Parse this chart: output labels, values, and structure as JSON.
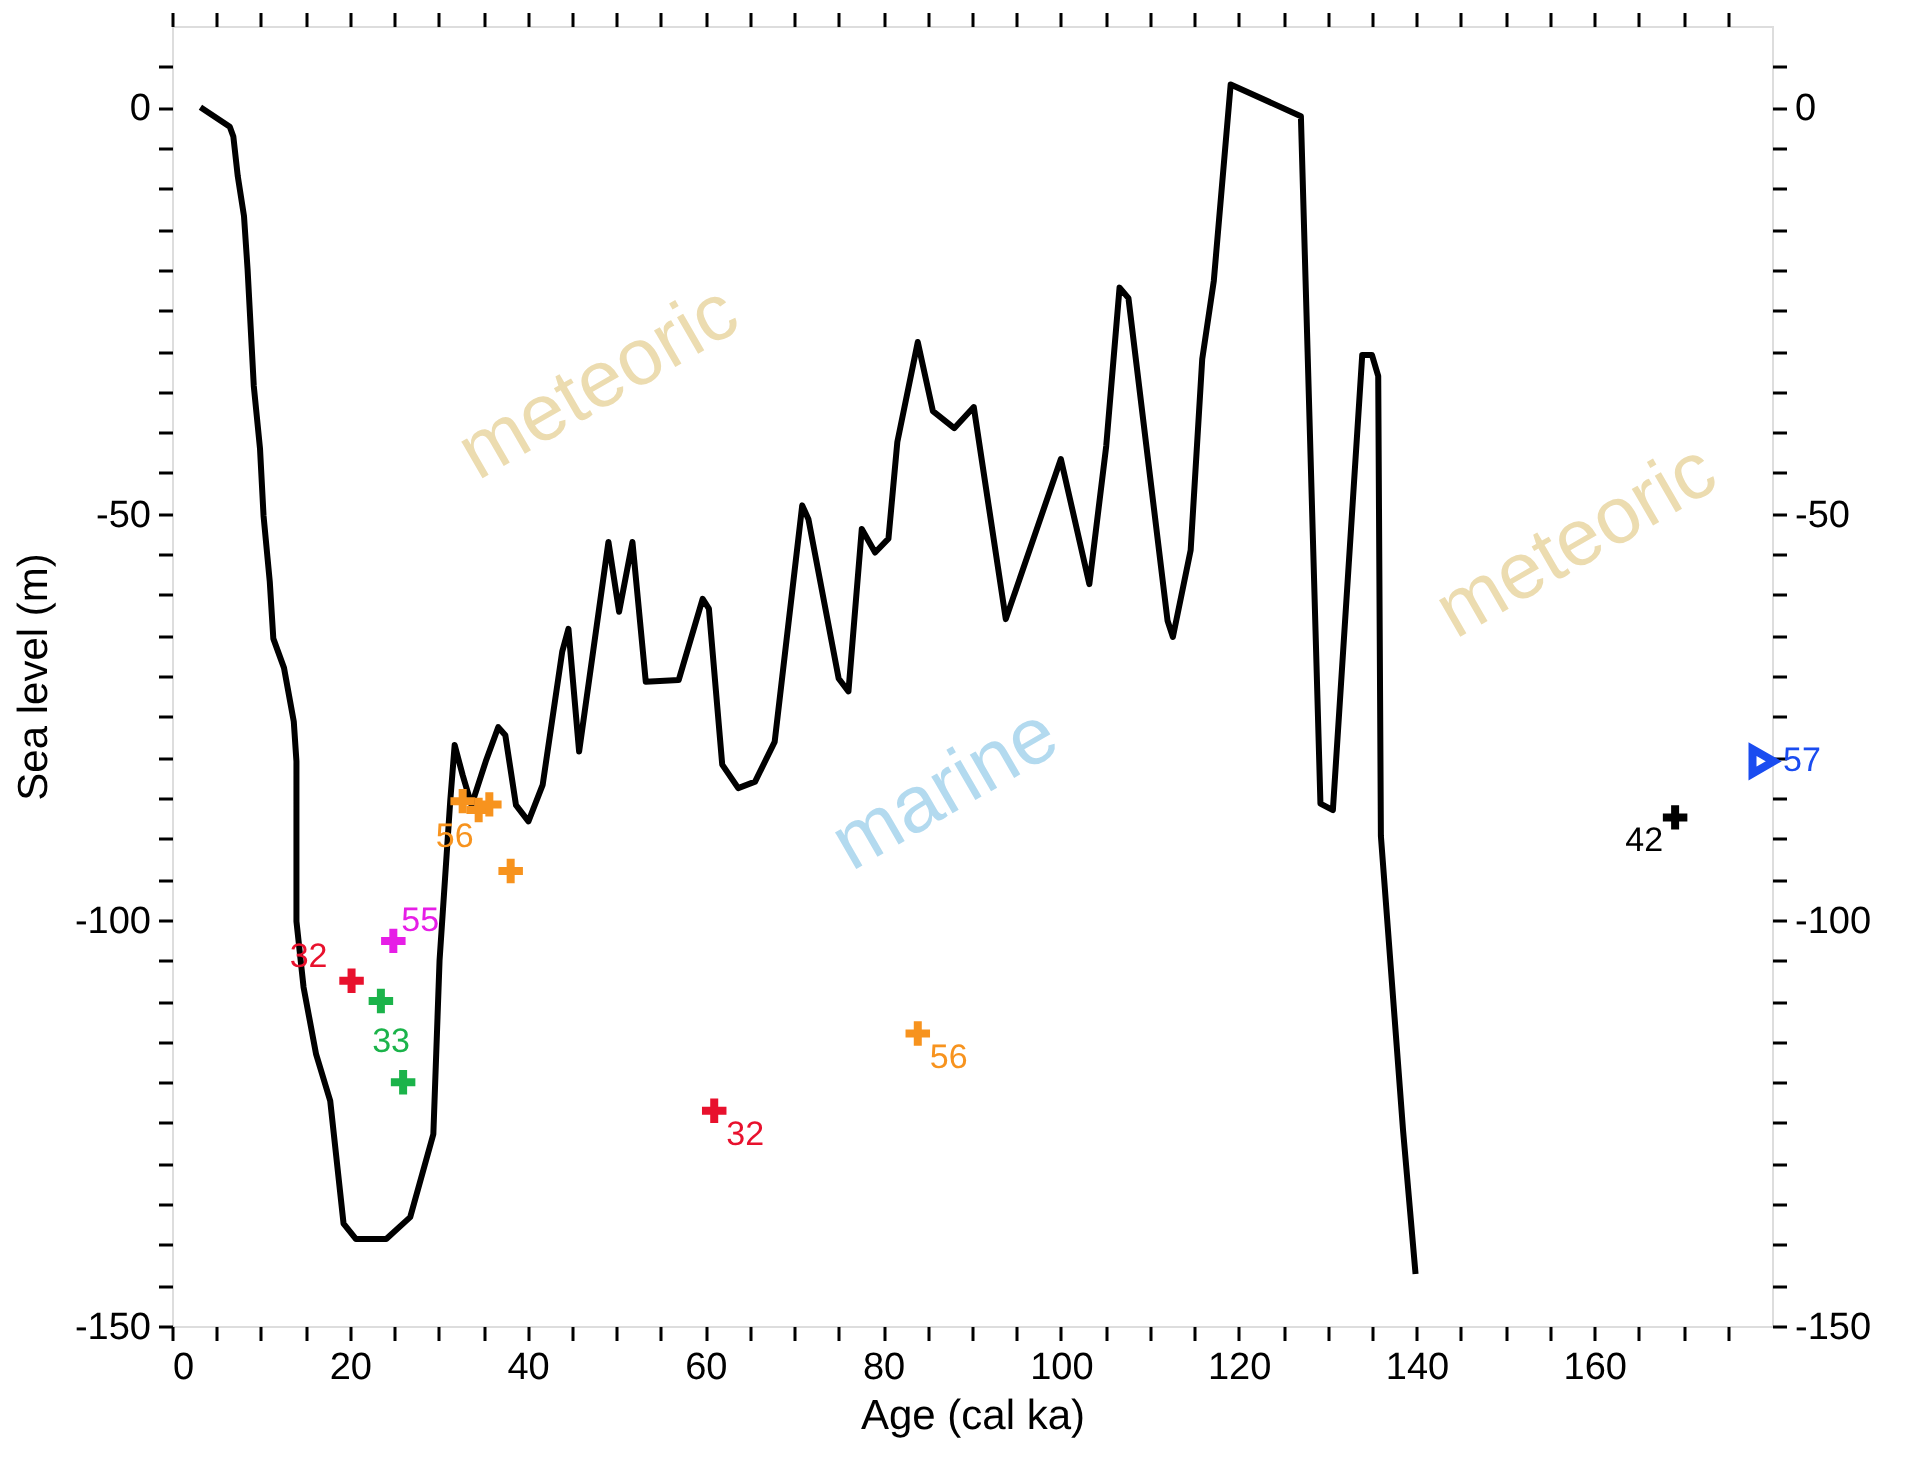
{
  "chart_data": {
    "type": "line",
    "xlabel": "Age (cal ka)",
    "ylabel": "Sea level (m)",
    "xlim": [
      0,
      180
    ],
    "ylim": [
      -150,
      10
    ],
    "y2lim": [
      -150,
      10
    ],
    "xticks": [
      0,
      {
        "value": 5,
        "label": null
      },
      {
        "value": 10,
        "label": null
      },
      {
        "value": 15,
        "label": null
      },
      20,
      {
        "value": 25,
        "label": null
      },
      {
        "value": 30,
        "label": null
      },
      {
        "value": 35,
        "label": null
      },
      40,
      {
        "value": 45,
        "label": null
      },
      {
        "value": 50,
        "label": null
      },
      {
        "value": 55,
        "label": null
      },
      60,
      {
        "value": 65,
        "label": null
      },
      {
        "value": 70,
        "label": null
      },
      {
        "value": 75,
        "label": null
      },
      80,
      {
        "value": 85,
        "label": null
      },
      {
        "value": 90,
        "label": null
      },
      {
        "value": 95,
        "label": null
      },
      100,
      {
        "value": 105,
        "label": null
      },
      {
        "value": 110,
        "label": null
      },
      {
        "value": 115,
        "label": null
      },
      120,
      {
        "value": 125,
        "label": null
      },
      {
        "value": 130,
        "label": null
      },
      {
        "value": 135,
        "label": null
      },
      140,
      {
        "value": 145,
        "label": null
      },
      {
        "value": 150,
        "label": null
      },
      {
        "value": 155,
        "label": null
      },
      160,
      {
        "value": 165,
        "label": null
      },
      {
        "value": 170,
        "label": null
      },
      {
        "value": 175,
        "label": null
      }
    ],
    "yticks": [
      -150,
      {
        "value": -145,
        "label": null
      },
      {
        "value": -140,
        "label": null
      },
      {
        "value": -135,
        "label": null
      },
      {
        "value": -130,
        "label": null
      },
      {
        "value": -125,
        "label": null
      },
      {
        "value": -120,
        "label": null
      },
      {
        "value": -115,
        "label": null
      },
      {
        "value": -110,
        "label": null
      },
      {
        "value": -105,
        "label": null
      },
      -100,
      {
        "value": -95,
        "label": null
      },
      {
        "value": -90,
        "label": null
      },
      {
        "value": -85,
        "label": null
      },
      {
        "value": -80,
        "label": null
      },
      {
        "value": -75,
        "label": null
      },
      {
        "value": -70,
        "label": null
      },
      {
        "value": -65,
        "label": null
      },
      {
        "value": -60,
        "label": null
      },
      {
        "value": -55,
        "label": null
      },
      -50,
      {
        "value": -45,
        "label": null
      },
      {
        "value": -40,
        "label": null
      },
      {
        "value": -35,
        "label": null
      },
      {
        "value": -30,
        "label": null
      },
      {
        "value": -25,
        "label": null
      },
      {
        "value": -20,
        "label": null
      },
      {
        "value": -15,
        "label": null
      },
      {
        "value": -10,
        "label": null
      },
      {
        "value": -5,
        "label": null
      },
      0,
      {
        "value": 5,
        "label": null
      }
    ],
    "y2ticks": [
      -150,
      {
        "value": -145,
        "label": null
      },
      {
        "value": -140,
        "label": null
      },
      {
        "value": -135,
        "label": null
      },
      {
        "value": -130,
        "label": null
      },
      {
        "value": -125,
        "label": null
      },
      {
        "value": -120,
        "label": null
      },
      {
        "value": -115,
        "label": null
      },
      {
        "value": -110,
        "label": null
      },
      {
        "value": -105,
        "label": null
      },
      -100,
      {
        "value": -95,
        "label": null
      },
      {
        "value": -90,
        "label": null
      },
      {
        "value": -85,
        "label": null
      },
      {
        "value": -80,
        "label": null
      },
      {
        "value": -75,
        "label": null
      },
      {
        "value": -70,
        "label": null
      },
      {
        "value": -65,
        "label": null
      },
      {
        "value": -60,
        "label": null
      },
      {
        "value": -55,
        "label": null
      },
      -50,
      {
        "value": -45,
        "label": null
      },
      {
        "value": -40,
        "label": null
      },
      {
        "value": -35,
        "label": null
      },
      {
        "value": -30,
        "label": null
      },
      {
        "value": -25,
        "label": null
      },
      {
        "value": -20,
        "label": null
      },
      {
        "value": -15,
        "label": null
      },
      {
        "value": -10,
        "label": null
      },
      {
        "value": -5,
        "label": null
      },
      0,
      {
        "value": 5,
        "label": null
      }
    ],
    "grid": false,
    "line_style": "solid",
    "series": [
      {
        "color": "#000000",
        "marker": "none",
        "x": [
          3.2,
          6.5,
          6.9,
          7.4,
          8.1,
          8.5,
          9.2,
          9.9,
          10.3,
          11.0,
          11.4,
          12.6,
          13.7,
          14.0,
          14.0,
          14.8,
          16.2,
          17.8,
          19.3,
          20.7,
          24.1,
          26.8,
          29.4,
          30.1,
          31.3,
          31.8,
          32.7,
          33.7,
          35.3,
          36.7,
          37.5,
          38.7,
          40.1,
          41.7,
          43.9,
          44.6,
          45.8,
          49.1,
          50.3,
          51.8,
          53.3,
          57.0,
          59.7,
          60.4,
          61.9,
          63.7,
          65.6,
          67.8,
          70.9,
          71.6,
          75.0,
          76.1,
          77.6,
          79.1,
          80.6,
          81.6,
          83.9,
          85.6,
          88.0,
          90.2,
          93.8,
          100.0,
          103.2,
          105.1,
          106.6,
          107.6,
          112.0,
          112.6,
          114.6,
          115.9,
          117.2,
          119.1,
          127.0,
          129.2,
          130.6,
          133.9,
          135.0,
          135.7,
          136.0,
          138.5,
          139.9
        ],
        "values": [
          0,
          -2.4,
          -3.6,
          -8.5,
          -13.4,
          -19.9,
          -34.3,
          -42,
          -50.3,
          -58.4,
          -65.4,
          -69,
          -75.6,
          -80.5,
          -100.2,
          -108.3,
          -116.5,
          -122.3,
          -137.4,
          -139.3,
          -139.3,
          -136.6,
          -126.4,
          -105,
          -85.4,
          -78.5,
          -82.2,
          -85.9,
          -80.5,
          -76.3,
          -77.3,
          -85.9,
          -87.9,
          -83.4,
          -67,
          -64.2,
          -79.3,
          -53.5,
          -62.1,
          -53.5,
          -70.7,
          -70.5,
          -60.5,
          -61.7,
          -80.9,
          -83.8,
          -83,
          -78.1,
          -49,
          -50.7,
          -70.3,
          -71.9,
          -51.9,
          -54.8,
          -53.1,
          -41.2,
          -28.9,
          -37.4,
          -39.5,
          -36.9,
          -63,
          -43.3,
          -58.7,
          -41.7,
          -22.2,
          -23.5,
          -63.2,
          -65.2,
          -54.5,
          -31,
          -21.4,
          2.8,
          -1.1,
          -85.7,
          -86.5,
          -30.5,
          -30.5,
          -33.1,
          -89.7,
          -126,
          -143.6
        ]
      },
      {
        "type": "scatter",
        "color": "#e8112d",
        "marker": "cross",
        "x": [
          20.2,
          61.0
        ],
        "values": [
          -107.5,
          -123.5
        ]
      },
      {
        "type": "scatter",
        "color": "#1bb34a",
        "marker": "cross",
        "x": [
          23.5,
          26.0
        ],
        "values": [
          -110,
          -120
        ]
      },
      {
        "type": "scatter",
        "color": "#e61ee6",
        "marker": "cross",
        "x": [
          24.9
        ],
        "values": [
          -102.6
        ]
      },
      {
        "type": "scatter",
        "color": "#f7931e",
        "marker": "cross",
        "x": [
          32.7,
          34.5,
          35.7,
          38.1,
          83.9
        ],
        "values": [
          -85.4,
          -86.5,
          -85.8,
          -94,
          -114
        ]
      },
      {
        "type": "scatter",
        "color": "#000000",
        "marker": "cross",
        "x": [
          169.1
        ],
        "values": [
          -87.4
        ]
      },
      {
        "type": "scatter",
        "color": "#1a4cf0",
        "marker": "triangle",
        "x": [
          179
        ],
        "values": [
          -80.5
        ]
      }
    ],
    "annotations": [
      "meteoric",
      "marine",
      "meteoric",
      {
        "text": "32",
        "x": 20.2,
        "y": -107.5
      },
      {
        "text": "32",
        "x": 61.0,
        "y": -123.5
      },
      {
        "text": "33",
        "x": 26.0,
        "y": -120
      },
      {
        "text": "55",
        "x": 24.9,
        "y": -102.6
      },
      {
        "text": "56",
        "x": 32.7,
        "y": -85.4
      },
      {
        "text": "56",
        "x": 83.9,
        "y": -114
      },
      {
        "text": "42",
        "x": 169.1,
        "y": -87.4
      },
      {
        "text": "57",
        "x": 179,
        "y": -80.5
      }
    ]
  }
}
